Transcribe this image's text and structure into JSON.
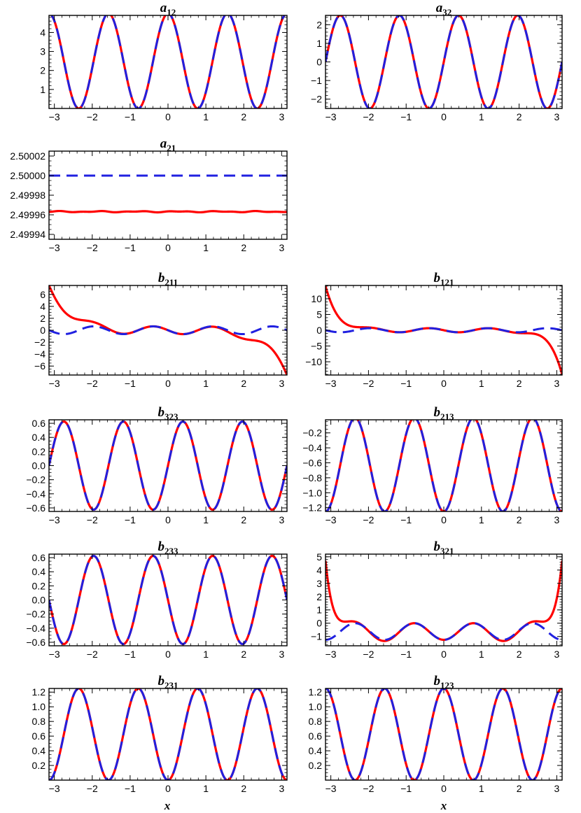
{
  "colors": {
    "red_series": "#ff0000",
    "blue_series": "#2020e0",
    "axes": "#000000"
  },
  "x_axis_label": "x",
  "chart_data": [
    {
      "type": "line",
      "title": {
        "base": "a",
        "sub": "12"
      },
      "xlim": [
        -3.14159,
        3.14159
      ],
      "ylim": [
        0,
        4.9
      ],
      "xticks": [
        -3,
        -2,
        -1,
        0,
        1,
        2,
        3
      ],
      "yticks": [
        1,
        2,
        3,
        4
      ],
      "series": [
        {
          "style": "solid",
          "color": "#ff0000",
          "formula": "2.5 + 2.5*cos(4x)"
        },
        {
          "style": "dashed",
          "color": "#2020e0",
          "formula": "2.5 + 2.5*cos(4x)"
        }
      ]
    },
    {
      "type": "line",
      "title": {
        "base": "a",
        "sub": "32"
      },
      "xlim": [
        -3.14159,
        3.14159
      ],
      "ylim": [
        -2.5,
        2.5
      ],
      "xticks": [
        -3,
        -2,
        -1,
        0,
        1,
        2,
        3
      ],
      "yticks": [
        -2,
        -1,
        0,
        1,
        2
      ],
      "series": [
        {
          "style": "solid",
          "color": "#ff0000",
          "formula": "2.5*sin(4x)"
        },
        {
          "style": "dashed",
          "color": "#2020e0",
          "formula": "2.5*sin(4x)"
        }
      ]
    },
    {
      "type": "line",
      "title": {
        "base": "a",
        "sub": "21"
      },
      "xlim": [
        -3.14159,
        3.14159
      ],
      "ylim": [
        2.499935,
        2.500025
      ],
      "xticks": [
        -3,
        -2,
        -1,
        0,
        1,
        2,
        3
      ],
      "yticks": [
        "2.49994",
        "2.49996",
        "2.49998",
        "2.50000",
        "2.50002"
      ],
      "series": [
        {
          "style": "solid",
          "color": "#ff0000",
          "formula": "2.499963 (nearly constant)"
        },
        {
          "style": "dashed",
          "color": "#2020e0",
          "formula": "2.5 (constant)"
        }
      ]
    },
    {
      "type": "line",
      "title": {
        "base": "b",
        "sub": "211"
      },
      "xlim": [
        -3.14159,
        3.14159
      ],
      "ylim": [
        -7.5,
        7.5
      ],
      "xticks": [
        -3,
        -2,
        -1,
        0,
        1,
        2,
        3
      ],
      "yticks": [
        -6,
        -4,
        -2,
        0,
        2,
        4,
        6
      ],
      "series": [
        {
          "style": "solid",
          "color": "#ff0000",
          "formula": "-0.65*sin(4x) + cubic edge deviation to ±7.5"
        },
        {
          "style": "dashed",
          "color": "#2020e0",
          "formula": "-0.65*sin(4x)"
        }
      ]
    },
    {
      "type": "line",
      "title": {
        "base": "b",
        "sub": "121"
      },
      "xlim": [
        -3.14159,
        3.14159
      ],
      "ylim": [
        -14.2,
        14.2
      ],
      "xticks": [
        -3,
        -2,
        -1,
        0,
        1,
        2,
        3
      ],
      "yticks": [
        -10,
        -5,
        0,
        5,
        10
      ],
      "series": [
        {
          "style": "solid",
          "color": "#ff0000",
          "formula": "-0.65*sin(4x) + steep edge deviation to ±14"
        },
        {
          "style": "dashed",
          "color": "#2020e0",
          "formula": "-0.65*sin(4x)"
        }
      ]
    },
    {
      "type": "line",
      "title": {
        "base": "b",
        "sub": "323"
      },
      "xlim": [
        -3.14159,
        3.14159
      ],
      "ylim": [
        -0.65,
        0.65
      ],
      "xticks": [
        -3,
        -2,
        -1,
        0,
        1,
        2,
        3
      ],
      "yticks": [
        "-0.6",
        "-0.4",
        "-0.2",
        "0.0",
        "0.2",
        "0.4",
        "0.6"
      ],
      "series": [
        {
          "style": "solid",
          "color": "#ff0000",
          "formula": "0.625*sin(4x)"
        },
        {
          "style": "dashed",
          "color": "#2020e0",
          "formula": "0.625*sin(4x)"
        }
      ]
    },
    {
      "type": "line",
      "title": {
        "base": "b",
        "sub": "213"
      },
      "xlim": [
        -3.14159,
        3.14159
      ],
      "ylim": [
        -1.25,
        -0.025
      ],
      "xticks": [
        -3,
        -2,
        -1,
        0,
        1,
        2,
        3
      ],
      "yticks": [
        "-1.2",
        "-1.0",
        "-0.8",
        "-0.6",
        "-0.4",
        "-0.2"
      ],
      "series": [
        {
          "style": "solid",
          "color": "#ff0000",
          "formula": "-0.625 - 0.625*cos(4x)"
        },
        {
          "style": "dashed",
          "color": "#2020e0",
          "formula": "-0.625 - 0.625*cos(4x)"
        }
      ]
    },
    {
      "type": "line",
      "title": {
        "base": "b",
        "sub": "233"
      },
      "xlim": [
        -3.14159,
        3.14159
      ],
      "ylim": [
        -0.65,
        0.65
      ],
      "xticks": [
        -3,
        -2,
        -1,
        0,
        1,
        2,
        3
      ],
      "yticks": [
        "-0.6",
        "-0.4",
        "-0.2",
        "0.0",
        "0.2",
        "0.4",
        "0.6"
      ],
      "series": [
        {
          "style": "solid",
          "color": "#ff0000",
          "formula": "-0.625*sin(4x)"
        },
        {
          "style": "dashed",
          "color": "#2020e0",
          "formula": "-0.625*sin(4x)"
        }
      ]
    },
    {
      "type": "line",
      "title": {
        "base": "b",
        "sub": "321"
      },
      "xlim": [
        -3.14159,
        3.14159
      ],
      "ylim": [
        -1.7,
        5.2
      ],
      "xticks": [
        -3,
        -2,
        -1,
        0,
        1,
        2,
        3
      ],
      "yticks": [
        -1,
        0,
        1,
        2,
        3,
        4,
        5
      ],
      "series": [
        {
          "style": "solid",
          "color": "#ff0000",
          "formula": "-0.625 - 0.625*cos(4x) + edge rise to 5"
        },
        {
          "style": "dashed",
          "color": "#2020e0",
          "formula": "-0.625 - 0.625*cos(4x)"
        }
      ]
    },
    {
      "type": "line",
      "title": {
        "base": "b",
        "sub": "231"
      },
      "xlim": [
        -3.14159,
        3.14159
      ],
      "ylim": [
        0,
        1.25
      ],
      "xticks": [
        -3,
        -2,
        -1,
        0,
        1,
        2,
        3
      ],
      "yticks": [
        "0.2",
        "0.4",
        "0.6",
        "0.8",
        "1.0",
        "1.2"
      ],
      "series": [
        {
          "style": "solid",
          "color": "#ff0000",
          "formula": "0.625 - 0.625*cos(4x)"
        },
        {
          "style": "dashed",
          "color": "#2020e0",
          "formula": "0.625 - 0.625*cos(4x)"
        }
      ]
    },
    {
      "type": "line",
      "title": {
        "base": "b",
        "sub": "123"
      },
      "xlim": [
        -3.14159,
        3.14159
      ],
      "ylim": [
        0,
        1.25
      ],
      "xticks": [
        -3,
        -2,
        -1,
        0,
        1,
        2,
        3
      ],
      "yticks": [
        "0.2",
        "0.4",
        "0.6",
        "0.8",
        "1.0",
        "1.2"
      ],
      "series": [
        {
          "style": "solid",
          "color": "#ff0000",
          "formula": "0.625 + 0.625*cos(4x)"
        },
        {
          "style": "dashed",
          "color": "#2020e0",
          "formula": "0.625 + 0.625*cos(4x)"
        }
      ]
    }
  ]
}
